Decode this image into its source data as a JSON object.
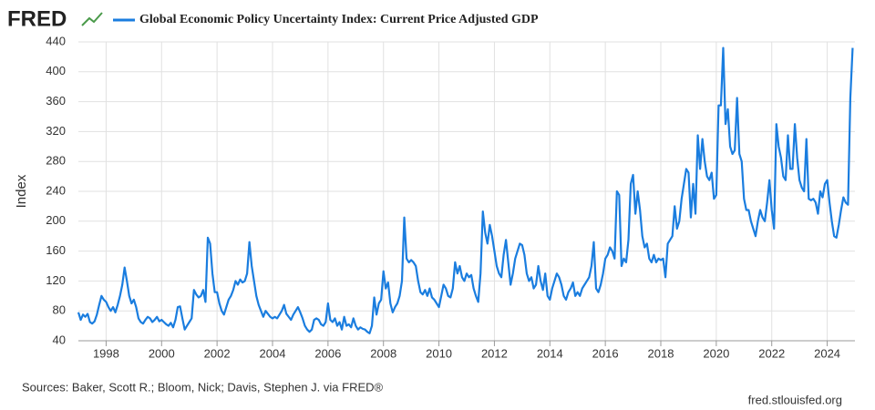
{
  "brand": "FRED",
  "source": "Sources: Baker, Scott R.; Bloom, Nick; Davis, Stephen J. via FRED®",
  "credit": "fred.stlouisfed.org",
  "chart_data": {
    "type": "line",
    "title": "Global Economic Policy Uncertainty Index: Current Price Adjusted GDP",
    "ylabel": "Index",
    "xlim": [
      1997,
      2025
    ],
    "xticks": [
      1998,
      2000,
      2002,
      2004,
      2006,
      2008,
      2010,
      2012,
      2014,
      2016,
      2018,
      2020,
      2022,
      2024
    ],
    "ylim": [
      40,
      440
    ],
    "yticks": [
      40,
      80,
      120,
      160,
      200,
      240,
      280,
      320,
      360,
      400,
      440
    ],
    "grid": true,
    "x": [
      "1997-01",
      "1997-02",
      "1997-03",
      "1997-04",
      "1997-05",
      "1997-06",
      "1997-07",
      "1997-08",
      "1997-09",
      "1997-10",
      "1997-11",
      "1997-12",
      "1998-01",
      "1998-02",
      "1998-03",
      "1998-04",
      "1998-05",
      "1998-06",
      "1998-07",
      "1998-08",
      "1998-09",
      "1998-10",
      "1998-11",
      "1998-12",
      "1999-01",
      "1999-02",
      "1999-03",
      "1999-04",
      "1999-05",
      "1999-06",
      "1999-07",
      "1999-08",
      "1999-09",
      "1999-10",
      "1999-11",
      "1999-12",
      "2000-01",
      "2000-02",
      "2000-03",
      "2000-04",
      "2000-05",
      "2000-06",
      "2000-07",
      "2000-08",
      "2000-09",
      "2000-10",
      "2000-11",
      "2000-12",
      "2001-01",
      "2001-02",
      "2001-03",
      "2001-04",
      "2001-05",
      "2001-06",
      "2001-07",
      "2001-08",
      "2001-09",
      "2001-10",
      "2001-11",
      "2001-12",
      "2002-01",
      "2002-02",
      "2002-03",
      "2002-04",
      "2002-05",
      "2002-06",
      "2002-07",
      "2002-08",
      "2002-09",
      "2002-10",
      "2002-11",
      "2002-12",
      "2003-01",
      "2003-02",
      "2003-03",
      "2003-04",
      "2003-05",
      "2003-06",
      "2003-07",
      "2003-08",
      "2003-09",
      "2003-10",
      "2003-11",
      "2003-12",
      "2004-01",
      "2004-02",
      "2004-03",
      "2004-04",
      "2004-05",
      "2004-06",
      "2004-07",
      "2004-08",
      "2004-09",
      "2004-10",
      "2004-11",
      "2004-12",
      "2005-01",
      "2005-02",
      "2005-03",
      "2005-04",
      "2005-05",
      "2005-06",
      "2005-07",
      "2005-08",
      "2005-09",
      "2005-10",
      "2005-11",
      "2005-12",
      "2006-01",
      "2006-02",
      "2006-03",
      "2006-04",
      "2006-05",
      "2006-06",
      "2006-07",
      "2006-08",
      "2006-09",
      "2006-10",
      "2006-11",
      "2006-12",
      "2007-01",
      "2007-02",
      "2007-03",
      "2007-04",
      "2007-05",
      "2007-06",
      "2007-07",
      "2007-08",
      "2007-09",
      "2007-10",
      "2007-11",
      "2007-12",
      "2008-01",
      "2008-02",
      "2008-03",
      "2008-04",
      "2008-05",
      "2008-06",
      "2008-07",
      "2008-08",
      "2008-09",
      "2008-10",
      "2008-11",
      "2008-12",
      "2009-01",
      "2009-02",
      "2009-03",
      "2009-04",
      "2009-05",
      "2009-06",
      "2009-07",
      "2009-08",
      "2009-09",
      "2009-10",
      "2009-11",
      "2009-12",
      "2010-01",
      "2010-02",
      "2010-03",
      "2010-04",
      "2010-05",
      "2010-06",
      "2010-07",
      "2010-08",
      "2010-09",
      "2010-10",
      "2010-11",
      "2010-12",
      "2011-01",
      "2011-02",
      "2011-03",
      "2011-04",
      "2011-05",
      "2011-06",
      "2011-07",
      "2011-08",
      "2011-09",
      "2011-10",
      "2011-11",
      "2011-12",
      "2012-01",
      "2012-02",
      "2012-03",
      "2012-04",
      "2012-05",
      "2012-06",
      "2012-07",
      "2012-08",
      "2012-09",
      "2012-10",
      "2012-11",
      "2012-12",
      "2013-01",
      "2013-02",
      "2013-03",
      "2013-04",
      "2013-05",
      "2013-06",
      "2013-07",
      "2013-08",
      "2013-09",
      "2013-10",
      "2013-11",
      "2013-12",
      "2014-01",
      "2014-02",
      "2014-03",
      "2014-04",
      "2014-05",
      "2014-06",
      "2014-07",
      "2014-08",
      "2014-09",
      "2014-10",
      "2014-11",
      "2014-12",
      "2015-01",
      "2015-02",
      "2015-03",
      "2015-04",
      "2015-05",
      "2015-06",
      "2015-07",
      "2015-08",
      "2015-09",
      "2015-10",
      "2015-11",
      "2015-12",
      "2016-01",
      "2016-02",
      "2016-03",
      "2016-04",
      "2016-05",
      "2016-06",
      "2016-07",
      "2016-08",
      "2016-09",
      "2016-10",
      "2016-11",
      "2016-12",
      "2017-01",
      "2017-02",
      "2017-03",
      "2017-04",
      "2017-05",
      "2017-06",
      "2017-07",
      "2017-08",
      "2017-09",
      "2017-10",
      "2017-11",
      "2017-12",
      "2018-01",
      "2018-02",
      "2018-03",
      "2018-04",
      "2018-05",
      "2018-06",
      "2018-07",
      "2018-08",
      "2018-09",
      "2018-10",
      "2018-11",
      "2018-12",
      "2019-01",
      "2019-02",
      "2019-03",
      "2019-04",
      "2019-05",
      "2019-06",
      "2019-07",
      "2019-08",
      "2019-09",
      "2019-10",
      "2019-11",
      "2019-12",
      "2020-01",
      "2020-02",
      "2020-03",
      "2020-04",
      "2020-05",
      "2020-06",
      "2020-07",
      "2020-08",
      "2020-09",
      "2020-10",
      "2020-11",
      "2020-12",
      "2021-01",
      "2021-02",
      "2021-03",
      "2021-04",
      "2021-05",
      "2021-06",
      "2021-07",
      "2021-08",
      "2021-09",
      "2021-10",
      "2021-11",
      "2021-12",
      "2022-01",
      "2022-02",
      "2022-03",
      "2022-04",
      "2022-05",
      "2022-06",
      "2022-07",
      "2022-08",
      "2022-09",
      "2022-10",
      "2022-11",
      "2022-12",
      "2023-01",
      "2023-02",
      "2023-03",
      "2023-04",
      "2023-05",
      "2023-06",
      "2023-07",
      "2023-08",
      "2023-09",
      "2023-10",
      "2023-11",
      "2023-12",
      "2024-01",
      "2024-02",
      "2024-03",
      "2024-04",
      "2024-05",
      "2024-06",
      "2024-07",
      "2024-08",
      "2024-09",
      "2024-10",
      "2024-11",
      "2024-12"
    ],
    "series": [
      {
        "name": "Global Economic Policy Uncertainty Index: Current Price Adjusted GDP",
        "color": "#1a7ddf",
        "values": [
          78,
          68,
          75,
          72,
          76,
          65,
          63,
          66,
          75,
          88,
          100,
          95,
          92,
          85,
          80,
          85,
          78,
          88,
          100,
          115,
          138,
          120,
          100,
          90,
          95,
          85,
          70,
          65,
          63,
          68,
          72,
          70,
          65,
          68,
          72,
          66,
          68,
          65,
          62,
          60,
          64,
          58,
          68,
          85,
          86,
          70,
          55,
          60,
          65,
          70,
          108,
          102,
          98,
          100,
          108,
          92,
          178,
          170,
          130,
          105,
          105,
          90,
          80,
          75,
          85,
          95,
          100,
          108,
          120,
          115,
          122,
          118,
          120,
          130,
          172,
          140,
          120,
          100,
          88,
          80,
          72,
          80,
          76,
          72,
          70,
          72,
          70,
          75,
          80,
          88,
          76,
          72,
          68,
          75,
          80,
          85,
          78,
          70,
          60,
          55,
          52,
          55,
          68,
          70,
          68,
          62,
          60,
          65,
          90,
          68,
          65,
          70,
          60,
          65,
          55,
          72,
          60,
          62,
          58,
          70,
          60,
          55,
          58,
          56,
          55,
          52,
          50,
          60,
          98,
          75,
          90,
          95,
          133,
          110,
          118,
          90,
          78,
          85,
          90,
          100,
          120,
          205,
          150,
          145,
          148,
          145,
          140,
          120,
          105,
          102,
          108,
          100,
          110,
          98,
          95,
          90,
          85,
          100,
          115,
          110,
          100,
          98,
          110,
          145,
          130,
          140,
          125,
          120,
          130,
          125,
          128,
          110,
          100,
          92,
          130,
          213,
          185,
          170,
          195,
          180,
          160,
          140,
          130,
          125,
          155,
          175,
          145,
          115,
          130,
          150,
          160,
          170,
          168,
          155,
          130,
          120,
          125,
          110,
          115,
          140,
          120,
          108,
          130,
          100,
          95,
          110,
          120,
          130,
          125,
          115,
          100,
          95,
          105,
          110,
          118,
          100,
          105,
          100,
          110,
          115,
          120,
          125,
          140,
          172,
          110,
          105,
          115,
          130,
          150,
          155,
          165,
          160,
          150,
          240,
          235,
          140,
          150,
          145,
          175,
          250,
          262,
          210,
          240,
          215,
          180,
          165,
          170,
          150,
          145,
          155,
          145,
          150,
          148,
          150,
          125,
          170,
          175,
          180,
          220,
          190,
          200,
          230,
          250,
          270,
          265,
          205,
          250,
          210,
          315,
          270,
          310,
          280,
          260,
          255,
          265,
          230,
          235,
          355,
          355,
          432,
          330,
          350,
          300,
          290,
          295,
          365,
          290,
          280,
          230,
          215,
          215,
          200,
          190,
          180,
          200,
          215,
          205,
          200,
          225,
          255,
          215,
          190,
          330,
          300,
          285,
          260,
          255,
          315,
          270,
          270,
          330,
          285,
          255,
          245,
          240,
          310,
          230,
          228,
          230,
          225,
          210,
          240,
          232,
          250,
          255,
          225,
          200,
          180,
          178,
          195,
          215,
          232,
          225,
          222,
          365,
          432
        ]
      }
    ]
  }
}
